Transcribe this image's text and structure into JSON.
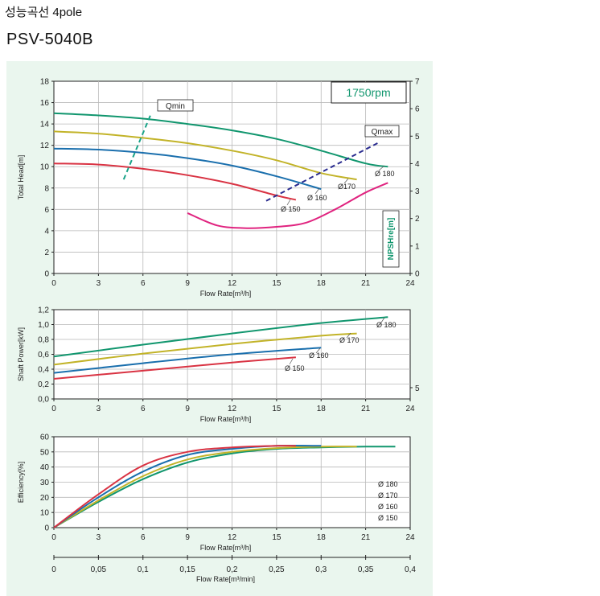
{
  "header": {
    "title": "성능곡선 4pole",
    "model": "PSV-5040B"
  },
  "colors": {
    "d180": "#11966e",
    "d170": "#c2b328",
    "d160": "#1a6fad",
    "d150": "#d93343",
    "npsh": "#e0237f",
    "qline_min": "#19a388",
    "qline_max": "#2a2c8f",
    "panel": "#eaf6ee"
  },
  "chart_data": [
    {
      "type": "line",
      "name": "head",
      "rpm_label": "1750rpm",
      "xlabel": "Flow Rate[m³/h]",
      "ylabel": "Total Head[m]",
      "y2label": "NPSHre[m]",
      "xlim": [
        0,
        24
      ],
      "ylim": [
        0,
        18
      ],
      "y2lim": [
        0,
        7
      ],
      "xticks": [
        "0",
        "3",
        "6",
        "9",
        "12",
        "15",
        "18",
        "21",
        "24"
      ],
      "yticks": [
        "0",
        "2",
        "4",
        "6",
        "8",
        "10",
        "12",
        "14",
        "16",
        "18"
      ],
      "y2ticks": [
        "0",
        "1",
        "2",
        "3",
        "4",
        "5",
        "6",
        "7"
      ],
      "series": [
        {
          "name": "Ø 180",
          "color_key": "d180",
          "x": [
            0,
            3,
            6,
            9,
            12,
            15,
            18,
            21,
            22.5
          ],
          "y": [
            15.0,
            14.8,
            14.5,
            14.0,
            13.4,
            12.6,
            11.5,
            10.3,
            10.0
          ]
        },
        {
          "name": "Ø170",
          "color_key": "d170",
          "x": [
            0,
            3,
            6,
            9,
            12,
            15,
            18,
            20.4
          ],
          "y": [
            13.3,
            13.1,
            12.7,
            12.2,
            11.5,
            10.6,
            9.4,
            8.8
          ]
        },
        {
          "name": "Ø 160",
          "color_key": "d160",
          "x": [
            0,
            3,
            6,
            9,
            12,
            15,
            18
          ],
          "y": [
            11.7,
            11.6,
            11.3,
            10.8,
            10.1,
            9.1,
            7.9
          ]
        },
        {
          "name": "Ø 150",
          "color_key": "d150",
          "x": [
            0,
            3,
            6,
            9,
            12,
            15,
            16.3
          ],
          "y": [
            10.3,
            10.2,
            9.8,
            9.2,
            8.4,
            7.3,
            6.9
          ]
        }
      ],
      "npsh": {
        "name": "NPSHre",
        "color_key": "npsh",
        "x": [
          9,
          11,
          13,
          15,
          17,
          19,
          21,
          22.5
        ],
        "y": [
          2.2,
          1.75,
          1.65,
          1.7,
          1.85,
          2.35,
          2.95,
          3.3
        ]
      },
      "qlines": [
        {
          "label": "Qmin",
          "color_key": "qline_min",
          "x": [
            4.7,
            6.5
          ],
          "y": [
            8.8,
            14.8
          ]
        },
        {
          "label": "Qmax",
          "color_key": "qline_max",
          "x": [
            14.3,
            21.8
          ],
          "y": [
            6.8,
            12.2
          ]
        }
      ]
    },
    {
      "type": "line",
      "name": "power",
      "xlabel": "Flow Rate[m³/h]",
      "ylabel": "Shaft Power[kW]",
      "xlim": [
        0,
        24
      ],
      "ylim": [
        0,
        1.2
      ],
      "xticks": [
        "0",
        "3",
        "6",
        "9",
        "12",
        "15",
        "18",
        "21",
        "24"
      ],
      "yticks": [
        "0,0",
        "0,2",
        "0,4",
        "0,6",
        "0,8",
        "1,0",
        "1,2"
      ],
      "y2ticks": [
        "5"
      ],
      "series": [
        {
          "name": "Ø 180",
          "color_key": "d180",
          "x": [
            0,
            6,
            12,
            18,
            22.5
          ],
          "y": [
            0.57,
            0.73,
            0.88,
            1.02,
            1.1
          ]
        },
        {
          "name": "Ø 170",
          "color_key": "d170",
          "x": [
            0,
            6,
            12,
            18,
            20.4
          ],
          "y": [
            0.46,
            0.61,
            0.74,
            0.85,
            0.88
          ]
        },
        {
          "name": "Ø 160",
          "color_key": "d160",
          "x": [
            0,
            6,
            12,
            18
          ],
          "y": [
            0.35,
            0.48,
            0.6,
            0.69
          ]
        },
        {
          "name": "Ø 150",
          "color_key": "d150",
          "x": [
            0,
            6,
            12,
            16.3
          ],
          "y": [
            0.27,
            0.38,
            0.49,
            0.56
          ]
        }
      ]
    },
    {
      "type": "line",
      "name": "efficiency",
      "xlabel": "Flow Rate[m³/h]",
      "x2label": "Flow Rate[m³/min]",
      "ylabel": "Efficiency[%]",
      "xlim": [
        0,
        24
      ],
      "ylim": [
        0,
        60
      ],
      "xticks": [
        "0",
        "3",
        "6",
        "9",
        "12",
        "15",
        "18",
        "21",
        "24"
      ],
      "x2ticks": [
        "0",
        "0,05",
        "0,1",
        "0,15",
        "0,2",
        "0,25",
        "0,3",
        "0,35",
        "0,4"
      ],
      "yticks": [
        "0",
        "10",
        "20",
        "30",
        "40",
        "50",
        "60"
      ],
      "legend": [
        "Ø 180",
        "Ø 170",
        "Ø 160",
        "Ø 150"
      ],
      "series": [
        {
          "name": "Ø 180",
          "color_key": "d180",
          "x": [
            0,
            3,
            6,
            9,
            12,
            15,
            18,
            21,
            23
          ],
          "y": [
            0,
            17,
            32,
            43,
            49,
            52,
            53,
            53.5,
            53.5
          ]
        },
        {
          "name": "Ø 170",
          "color_key": "d170",
          "x": [
            0,
            3,
            6,
            9,
            12,
            15,
            18,
            20.4
          ],
          "y": [
            0,
            18,
            34,
            45,
            50,
            52.5,
            53.5,
            53.5
          ]
        },
        {
          "name": "Ø 160",
          "color_key": "d160",
          "x": [
            0,
            3,
            6,
            9,
            12,
            15,
            18
          ],
          "y": [
            0,
            20,
            37,
            48,
            52,
            54,
            54
          ]
        },
        {
          "name": "Ø 150",
          "color_key": "d150",
          "x": [
            0,
            3,
            6,
            9,
            12,
            15,
            16.3
          ],
          "y": [
            0,
            22,
            41,
            50,
            53,
            54,
            54
          ]
        }
      ]
    }
  ]
}
